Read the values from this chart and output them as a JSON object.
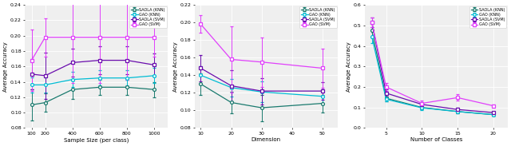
{
  "plot1": {
    "xlabel": "Sample Size (per class)",
    "ylabel": "Average Accuracy",
    "xlim": [
      50,
      1100
    ],
    "ylim": [
      0.08,
      0.24
    ],
    "yticks": [
      0.08,
      0.1,
      0.12,
      0.14,
      0.16,
      0.18,
      0.2,
      0.22,
      0.24
    ],
    "xticks": [
      100,
      200,
      400,
      600,
      800,
      1000
    ],
    "x": [
      100,
      200,
      400,
      600,
      800,
      1000
    ],
    "series": {
      "SAOLA (KNN)": {
        "y": [
          0.11,
          0.113,
          0.13,
          0.133,
          0.133,
          0.13
        ],
        "yerr": [
          0.02,
          0.012,
          0.012,
          0.01,
          0.01,
          0.01
        ],
        "color": "#1a7a6e",
        "marker": "o"
      },
      "GAO (KNN)": {
        "y": [
          0.136,
          0.136,
          0.143,
          0.145,
          0.145,
          0.148
        ],
        "yerr": [
          0.01,
          0.01,
          0.01,
          0.01,
          0.01,
          0.01
        ],
        "color": "#00bcd4",
        "marker": "o"
      },
      "SAOLA (SVM)": {
        "y": [
          0.15,
          0.148,
          0.165,
          0.168,
          0.168,
          0.162
        ],
        "yerr": [
          0.02,
          0.03,
          0.018,
          0.018,
          0.018,
          0.015
        ],
        "color": "#6a0dad",
        "marker": "s"
      },
      "GAO (SVM)": {
        "y": [
          0.168,
          0.198,
          0.198,
          0.198,
          0.198,
          0.198
        ],
        "yerr": [
          0.04,
          0.025,
          0.06,
          0.06,
          0.055,
          0.025
        ],
        "color": "#e040fb",
        "marker": "s"
      }
    }
  },
  "plot2": {
    "xlabel": "Dimension",
    "ylabel": "Average Accuracy",
    "xlim": [
      8,
      55
    ],
    "ylim": [
      0.08,
      0.22
    ],
    "yticks": [
      0.08,
      0.1,
      0.12,
      0.14,
      0.16,
      0.18,
      0.2,
      0.22
    ],
    "xticks": [
      10,
      20,
      30,
      40,
      50
    ],
    "x": [
      10,
      20,
      30,
      50
    ],
    "series": {
      "SAOLA (KNN)": {
        "y": [
          0.13,
          0.109,
          0.103,
          0.108
        ],
        "yerr": [
          0.012,
          0.012,
          0.015,
          0.01
        ],
        "color": "#1a7a6e",
        "marker": "o"
      },
      "GAO (KNN)": {
        "y": [
          0.14,
          0.126,
          0.121,
          0.116
        ],
        "yerr": [
          0.01,
          0.01,
          0.012,
          0.008
        ],
        "color": "#00bcd4",
        "marker": "o"
      },
      "SAOLA (SVM)": {
        "y": [
          0.148,
          0.128,
          0.122,
          0.122
        ],
        "yerr": [
          0.015,
          0.018,
          0.015,
          0.01
        ],
        "color": "#6a0dad",
        "marker": "s"
      },
      "GAO (SVM)": {
        "y": [
          0.198,
          0.158,
          0.155,
          0.148
        ],
        "yerr": [
          0.01,
          0.038,
          0.028,
          0.022
        ],
        "color": "#e040fb",
        "marker": "s"
      }
    }
  },
  "plot3": {
    "xlabel": "Number of Classes",
    "ylabel": "Average Accuracy",
    "xlim": [
      2,
      22
    ],
    "ylim": [
      0.0,
      0.6
    ],
    "yticks": [
      0.0,
      0.1,
      0.2,
      0.3,
      0.4,
      0.5,
      0.6
    ],
    "xticks": [
      5,
      10,
      15,
      20
    ],
    "x": [
      3,
      5,
      10,
      15,
      20
    ],
    "series": {
      "SAOLA (KNN)": {
        "y": [
          0.475,
          0.145,
          0.1,
          0.08,
          0.065
        ],
        "yerr": [
          0.035,
          0.015,
          0.01,
          0.008,
          0.005
        ],
        "color": "#1a7a6e",
        "marker": "o"
      },
      "GAO (KNN)": {
        "y": [
          0.445,
          0.14,
          0.098,
          0.08,
          0.065
        ],
        "yerr": [
          0.03,
          0.012,
          0.01,
          0.008,
          0.005
        ],
        "color": "#00bcd4",
        "marker": "o"
      },
      "SAOLA (SVM)": {
        "y": [
          0.515,
          0.17,
          0.115,
          0.09,
          0.075
        ],
        "yerr": [
          0.025,
          0.018,
          0.012,
          0.01,
          0.006
        ],
        "color": "#6a0dad",
        "marker": "s"
      },
      "GAO (SVM)": {
        "y": [
          0.515,
          0.2,
          0.12,
          0.148,
          0.108
        ],
        "yerr": [
          0.025,
          0.018,
          0.015,
          0.015,
          0.008
        ],
        "color": "#e040fb",
        "marker": "s"
      }
    }
  },
  "legend_labels": [
    "SAOLA (KNN)",
    "GAO (KNN)",
    "SAOLA (SVM)",
    "GAO (SVM)"
  ]
}
